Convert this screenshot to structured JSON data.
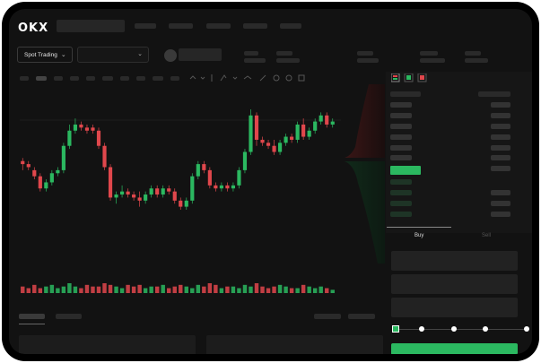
{
  "header": {
    "logo": "OKX"
  },
  "toolbar": {
    "pair_label": "Spot Trading",
    "pair_chevron": "⌄",
    "dropdown_chevron": "⌄"
  },
  "trade_tabs": {
    "buy": "Buy",
    "sell": "Sell"
  },
  "colors": {
    "up": "#2bb860",
    "down": "#e0474c",
    "background": "#121212"
  },
  "chart_data": {
    "type": "candlestick",
    "title": "",
    "candles": [
      {
        "o": 153,
        "h": 154,
        "l": 150,
        "c": 152
      },
      {
        "o": 152,
        "h": 153,
        "l": 150,
        "c": 151
      },
      {
        "o": 150,
        "h": 151,
        "l": 147,
        "c": 148
      },
      {
        "o": 148,
        "h": 149,
        "l": 143,
        "c": 144
      },
      {
        "o": 144,
        "h": 147,
        "l": 143,
        "c": 146
      },
      {
        "o": 146,
        "h": 150,
        "l": 145,
        "c": 149
      },
      {
        "o": 149,
        "h": 151,
        "l": 148,
        "c": 150
      },
      {
        "o": 150,
        "h": 159,
        "l": 149,
        "c": 158
      },
      {
        "o": 158,
        "h": 165,
        "l": 157,
        "c": 163
      },
      {
        "o": 163,
        "h": 167,
        "l": 162,
        "c": 165
      },
      {
        "o": 165,
        "h": 166,
        "l": 163,
        "c": 164
      },
      {
        "o": 164,
        "h": 165,
        "l": 162,
        "c": 163
      },
      {
        "o": 164,
        "h": 165,
        "l": 162,
        "c": 163
      },
      {
        "o": 163,
        "h": 164,
        "l": 157,
        "c": 158
      },
      {
        "o": 158,
        "h": 159,
        "l": 150,
        "c": 151
      },
      {
        "o": 151,
        "h": 152,
        "l": 140,
        "c": 141
      },
      {
        "o": 141,
        "h": 143,
        "l": 139,
        "c": 142
      },
      {
        "o": 142,
        "h": 145,
        "l": 141,
        "c": 143
      },
      {
        "o": 143,
        "h": 144,
        "l": 141,
        "c": 142
      },
      {
        "o": 142,
        "h": 143,
        "l": 140,
        "c": 141
      },
      {
        "o": 141,
        "h": 143,
        "l": 138,
        "c": 140
      },
      {
        "o": 140,
        "h": 143,
        "l": 139,
        "c": 142
      },
      {
        "o": 142,
        "h": 145,
        "l": 141,
        "c": 144
      },
      {
        "o": 144,
        "h": 145,
        "l": 141,
        "c": 142
      },
      {
        "o": 142,
        "h": 145,
        "l": 141,
        "c": 144
      },
      {
        "o": 144,
        "h": 145,
        "l": 142,
        "c": 143
      },
      {
        "o": 143,
        "h": 144,
        "l": 139,
        "c": 140
      },
      {
        "o": 140,
        "h": 141,
        "l": 137,
        "c": 138
      },
      {
        "o": 138,
        "h": 141,
        "l": 137,
        "c": 140
      },
      {
        "o": 140,
        "h": 149,
        "l": 139,
        "c": 148
      },
      {
        "o": 148,
        "h": 153,
        "l": 147,
        "c": 152
      },
      {
        "o": 152,
        "h": 153,
        "l": 149,
        "c": 150
      },
      {
        "o": 150,
        "h": 151,
        "l": 144,
        "c": 145
      },
      {
        "o": 145,
        "h": 146,
        "l": 143,
        "c": 144
      },
      {
        "o": 144,
        "h": 146,
        "l": 143,
        "c": 145
      },
      {
        "o": 145,
        "h": 146,
        "l": 143,
        "c": 144
      },
      {
        "o": 144,
        "h": 146,
        "l": 143,
        "c": 145
      },
      {
        "o": 145,
        "h": 151,
        "l": 144,
        "c": 150
      },
      {
        "o": 150,
        "h": 157,
        "l": 149,
        "c": 156
      },
      {
        "o": 156,
        "h": 170,
        "l": 155,
        "c": 168
      },
      {
        "o": 168,
        "h": 169,
        "l": 158,
        "c": 160
      },
      {
        "o": 160,
        "h": 161,
        "l": 158,
        "c": 159
      },
      {
        "o": 159,
        "h": 160,
        "l": 157,
        "c": 158
      },
      {
        "o": 158,
        "h": 160,
        "l": 155,
        "c": 156
      },
      {
        "o": 156,
        "h": 160,
        "l": 155,
        "c": 159
      },
      {
        "o": 159,
        "h": 162,
        "l": 158,
        "c": 161
      },
      {
        "o": 161,
        "h": 162,
        "l": 159,
        "c": 160
      },
      {
        "o": 160,
        "h": 166,
        "l": 159,
        "c": 165
      },
      {
        "o": 165,
        "h": 167,
        "l": 160,
        "c": 161
      },
      {
        "o": 161,
        "h": 164,
        "l": 160,
        "c": 163
      },
      {
        "o": 163,
        "h": 167,
        "l": 162,
        "c": 166
      },
      {
        "o": 166,
        "h": 169,
        "l": 165,
        "c": 168
      },
      {
        "o": 168,
        "h": 169,
        "l": 164,
        "c": 165
      },
      {
        "o": 165,
        "h": 167,
        "l": 164,
        "c": 166
      }
    ],
    "volume": [
      4,
      3,
      5,
      3,
      4,
      5,
      3,
      4,
      6,
      4,
      3,
      5,
      4,
      4,
      6,
      5,
      4,
      3,
      5,
      4,
      5,
      3,
      4,
      4,
      5,
      3,
      4,
      5,
      4,
      3,
      5,
      4,
      6,
      5,
      3,
      4,
      4,
      3,
      5,
      4,
      6,
      4,
      3,
      4,
      5,
      4,
      3,
      3,
      5,
      4,
      3,
      4,
      3,
      2
    ],
    "xlabel": "",
    "ylabel": ""
  }
}
